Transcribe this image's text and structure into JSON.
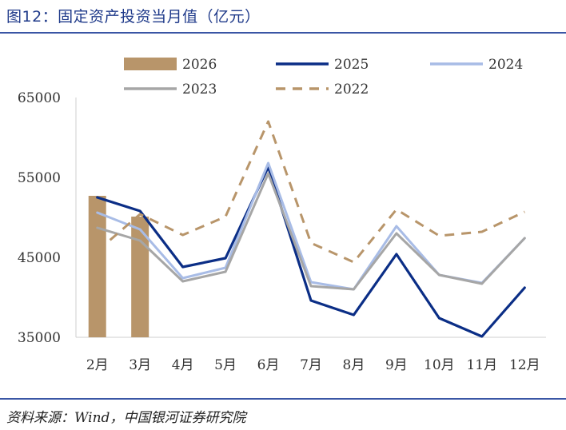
{
  "header": {
    "title": "图12：固定资产投资当月值（亿元）"
  },
  "footer": {
    "source": "资料来源：Wind，中国银河证券研究院"
  },
  "chart_data": {
    "type": "line",
    "title": "图12：固定资产投资当月值（亿元）",
    "xlabel": "",
    "ylabel": "",
    "categories": [
      "2月",
      "3月",
      "4月",
      "5月",
      "6月",
      "7月",
      "8月",
      "9月",
      "10月",
      "11月",
      "12月"
    ],
    "ylim": [
      35000,
      65000
    ],
    "yticks": [
      "65000",
      "55000",
      "45000",
      "35000"
    ],
    "grid": false,
    "legend_position": "top",
    "series": [
      {
        "name": "2026",
        "kind": "bar",
        "color": "#b8956a",
        "values": [
          52700,
          50100,
          null,
          null,
          null,
          null,
          null,
          null,
          null,
          null,
          null
        ]
      },
      {
        "name": "2025",
        "kind": "line",
        "color": "#0b2e86",
        "values": [
          52500,
          50800,
          43800,
          44900,
          56300,
          39600,
          37800,
          45400,
          37400,
          35100,
          41200
        ]
      },
      {
        "name": "2024",
        "kind": "line",
        "color": "#a8bce6",
        "values": [
          50600,
          48500,
          42400,
          43700,
          56800,
          41900,
          41000,
          48900,
          42800,
          41800,
          47400
        ]
      },
      {
        "name": "2023",
        "kind": "line",
        "color": "#a6a6a6",
        "values": [
          48700,
          47100,
          42000,
          43200,
          55500,
          41400,
          41000,
          48000,
          42800,
          41700,
          47400
        ]
      },
      {
        "name": "2022",
        "kind": "dashed",
        "color": "#b8956a",
        "values": [
          45800,
          50400,
          47800,
          50100,
          62000,
          46800,
          44400,
          51000,
          47700,
          48200,
          50700
        ]
      }
    ]
  }
}
